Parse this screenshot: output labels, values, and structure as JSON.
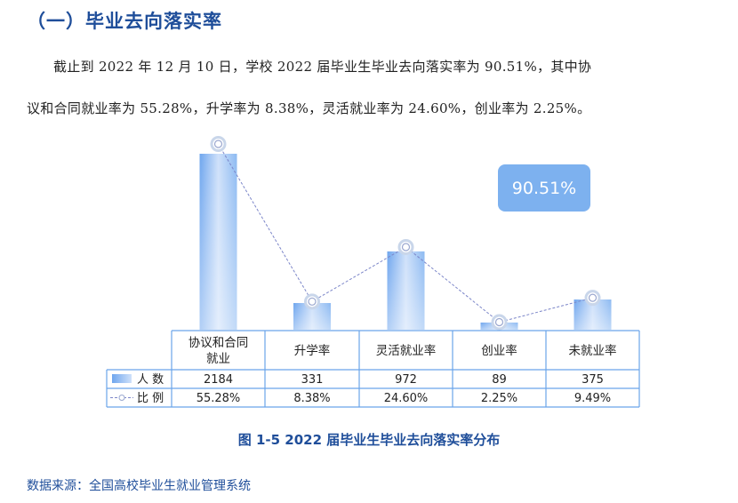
{
  "section_title": "（一）毕业去向落实率",
  "paragraph": {
    "line1": "截止到 2022 年 12 月 10 日，学校 2022 届毕业生毕业去向落实率为 90.51%，其中协",
    "line2": "议和合同就业率为 55.28%，升学率为 8.38%，灵活就业率为 24.60%，创业率为 2.25%。"
  },
  "chart_data": {
    "type": "bar",
    "categories": [
      "协议和合同就业",
      "升学率",
      "灵活就业率",
      "创业率",
      "未就业率"
    ],
    "category_lines": [
      [
        "协议和合同",
        "就业"
      ],
      [
        "升学率"
      ],
      [
        "灵活就业率"
      ],
      [
        "创业率"
      ],
      [
        "未就业率"
      ]
    ],
    "series": [
      {
        "name": "人 数",
        "type": "bar",
        "values": [
          2184,
          331,
          972,
          89,
          375
        ],
        "labels": [
          "2184",
          "331",
          "972",
          "89",
          "375"
        ]
      },
      {
        "name": "比 例",
        "type": "line",
        "values": [
          55.28,
          8.38,
          24.6,
          2.25,
          9.49
        ],
        "labels": [
          "55.28%",
          "8.38%",
          "24.60%",
          "2.25%",
          "9.49%"
        ]
      }
    ],
    "annotation": "90.51%",
    "legend": "table-left",
    "colors": {
      "bar": "#8ab8f2",
      "line": "#7c86c9",
      "annotation": "#7db1ef",
      "table_border": "#6aa5ea"
    }
  },
  "caption": "图 1-5    2022 届毕业生毕业去向落实率分布",
  "source": "数据来源：全国高校毕业生就业管理系统"
}
